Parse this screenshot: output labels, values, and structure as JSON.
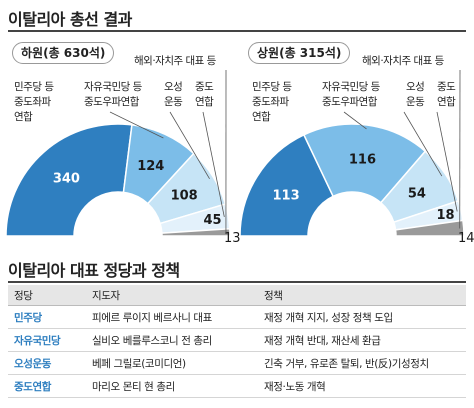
{
  "title": "이탈리아 총선 결과",
  "colors": {
    "blue_dark": "#2f7fc0",
    "blue_mid": "#7cbde8",
    "blue_light": "#c6e4f6",
    "blue_pale": "#e3f1fb",
    "gray": "#9a9a9a",
    "party_text": "#2f7fc0"
  },
  "chart_data": [
    {
      "type": "pie",
      "name": "하원(총 630석)",
      "title": "하원(총 630석)",
      "total": 630,
      "categories": [
        "민주당 등 중도좌파 연합",
        "자유국민당 등 중도우파연합",
        "오성 운동",
        "중도 연합",
        "해외·자치주 대표 등"
      ],
      "values": [
        340,
        124,
        108,
        45,
        13
      ]
    },
    {
      "type": "pie",
      "name": "상원(총 315석)",
      "title": "상원(총 315석)",
      "total": 315,
      "categories": [
        "민주당 등 중도좌파 연합",
        "자유국민당 등 중도우파연합",
        "오성 운동",
        "중도 연합",
        "해외·자치주 대표 등"
      ],
      "values": [
        113,
        116,
        54,
        18,
        14
      ]
    }
  ],
  "labels": {
    "left_party": [
      "민주당 등",
      "중도좌파",
      "연합"
    ],
    "right_party": [
      "자유국민당 등",
      "중도우파연합"
    ],
    "five_star": [
      "오성",
      "운동"
    ],
    "centrist": [
      "중도",
      "연합"
    ],
    "overseas": "해외·자치주 대표 등"
  },
  "section2_title": "이탈리아 대표 정당과 정책",
  "table": {
    "headers": [
      "정당",
      "지도자",
      "정책"
    ],
    "rows": [
      [
        "민주당",
        "피에르 루이지 베르사니 대표",
        "재정 개혁 지지, 성장 정책 도입"
      ],
      [
        "자유국민당",
        "실비오 베를루스코니 전 총리",
        "재정 개혁 반대, 재산세 환급"
      ],
      [
        "오성운동",
        "베페 그릴로(코미디언)",
        "긴축 거부, 유로존 탈퇴, 반(反)기성정치"
      ],
      [
        "중도연합",
        "마리오 몬티 현 총리",
        "재정·노동 개혁"
      ]
    ]
  }
}
